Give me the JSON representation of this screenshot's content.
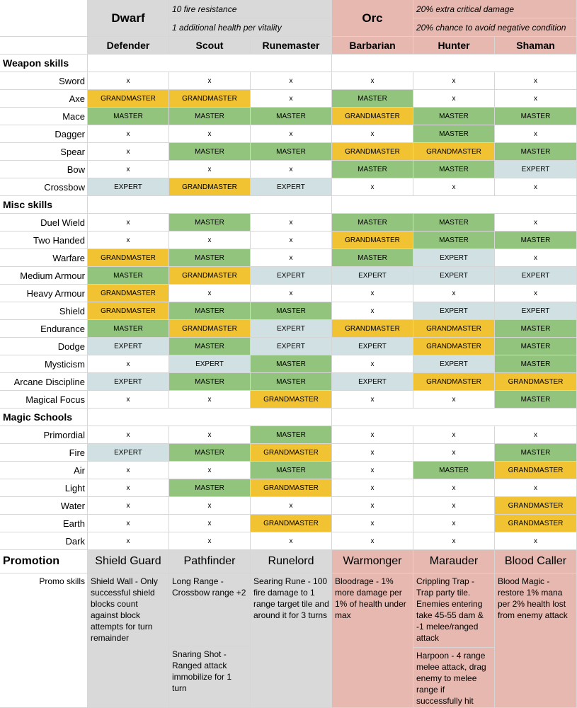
{
  "header": {
    "races": [
      {
        "name": "Dwarf",
        "traits": [
          "10 fire resistance",
          "1 additional health per vitality"
        ]
      },
      {
        "name": "Orc",
        "traits": [
          "20% extra critical damage",
          "20% chance to avoid negative condition"
        ]
      }
    ]
  },
  "classes": [
    "Defender",
    "Scout",
    "Runemaster",
    "Barbarian",
    "Hunter",
    "Shaman"
  ],
  "colors": {
    "GRANDMASTER": "#f1c232",
    "MASTER": "#93c47d",
    "EXPERT": "#d0e0e3",
    "x": "#ffffff",
    "dwarf": "#d9d9d9",
    "orc": "#e6b8af"
  },
  "sections": [
    {
      "title": "Weapon skills",
      "rows": [
        {
          "skill": "Sword",
          "values": [
            "x",
            "x",
            "x",
            "x",
            "x",
            "x"
          ]
        },
        {
          "skill": "Axe",
          "values": [
            "GRANDMASTER",
            "GRANDMASTER",
            "x",
            "MASTER",
            "x",
            "x"
          ]
        },
        {
          "skill": "Mace",
          "values": [
            "MASTER",
            "MASTER",
            "MASTER",
            "GRANDMASTER",
            "MASTER",
            "MASTER"
          ]
        },
        {
          "skill": "Dagger",
          "values": [
            "x",
            "x",
            "x",
            "x",
            "MASTER",
            "x"
          ]
        },
        {
          "skill": "Spear",
          "values": [
            "x",
            "MASTER",
            "MASTER",
            "GRANDMASTER",
            "GRANDMASTER",
            "MASTER"
          ]
        },
        {
          "skill": "Bow",
          "values": [
            "x",
            "x",
            "x",
            "MASTER",
            "MASTER",
            "EXPERT"
          ]
        },
        {
          "skill": "Crossbow",
          "values": [
            "EXPERT",
            "GRANDMASTER",
            "EXPERT",
            "x",
            "x",
            "x"
          ]
        }
      ]
    },
    {
      "title": "Misc skills",
      "rows": [
        {
          "skill": "Duel Wield",
          "values": [
            "x",
            "MASTER",
            "x",
            "MASTER",
            "MASTER",
            "x"
          ]
        },
        {
          "skill": "Two Handed",
          "values": [
            "x",
            "x",
            "x",
            "GRANDMASTER",
            "MASTER",
            "MASTER"
          ]
        },
        {
          "skill": "Warfare",
          "values": [
            "GRANDMASTER",
            "MASTER",
            "x",
            "MASTER",
            "EXPERT",
            "x"
          ]
        },
        {
          "skill": "Medium Armour",
          "values": [
            "MASTER",
            "GRANDMASTER",
            "EXPERT",
            "EXPERT",
            "EXPERT",
            "EXPERT"
          ]
        },
        {
          "skill": "Heavy Armour",
          "values": [
            "GRANDMASTER",
            "x",
            "x",
            "x",
            "x",
            "x"
          ]
        },
        {
          "skill": "Shield",
          "values": [
            "GRANDMASTER",
            "MASTER",
            "MASTER",
            "x",
            "EXPERT",
            "EXPERT"
          ]
        },
        {
          "skill": "Endurance",
          "values": [
            "MASTER",
            "GRANDMASTER",
            "EXPERT",
            "GRANDMASTER",
            "GRANDMASTER",
            "MASTER"
          ]
        },
        {
          "skill": "Dodge",
          "values": [
            "EXPERT",
            "MASTER",
            "EXPERT",
            "EXPERT",
            "GRANDMASTER",
            "MASTER"
          ]
        },
        {
          "skill": "Mysticism",
          "values": [
            "x",
            "EXPERT",
            "MASTER",
            "x",
            "EXPERT",
            "MASTER"
          ]
        },
        {
          "skill": "Arcane Discipline",
          "values": [
            "EXPERT",
            "MASTER",
            "MASTER",
            "EXPERT",
            "GRANDMASTER",
            "GRANDMASTER"
          ]
        },
        {
          "skill": "Magical Focus",
          "values": [
            "x",
            "x",
            "GRANDMASTER",
            "x",
            "x",
            "MASTER"
          ]
        }
      ]
    },
    {
      "title": "Magic Schools",
      "rows": [
        {
          "skill": "Primordial",
          "values": [
            "x",
            "x",
            "MASTER",
            "x",
            "x",
            "x"
          ]
        },
        {
          "skill": "Fire",
          "values": [
            "EXPERT",
            "MASTER",
            "GRANDMASTER",
            "x",
            "x",
            "MASTER"
          ]
        },
        {
          "skill": "Air",
          "values": [
            "x",
            "x",
            "MASTER",
            "x",
            "MASTER",
            "GRANDMASTER"
          ]
        },
        {
          "skill": "Light",
          "values": [
            "x",
            "MASTER",
            "GRANDMASTER",
            "x",
            "x",
            "x"
          ]
        },
        {
          "skill": "Water",
          "values": [
            "x",
            "x",
            "x",
            "x",
            "x",
            "GRANDMASTER"
          ]
        },
        {
          "skill": "Earth",
          "values": [
            "x",
            "x",
            "GRANDMASTER",
            "x",
            "x",
            "GRANDMASTER"
          ]
        },
        {
          "skill": "Dark",
          "values": [
            "x",
            "x",
            "x",
            "x",
            "x",
            "x"
          ]
        }
      ]
    }
  ],
  "promotion": {
    "label": "Promotion",
    "names": [
      "Shield Guard",
      "Pathfinder",
      "Runelord",
      "Warmonger",
      "Marauder",
      "Blood Caller"
    ]
  },
  "promo_skills": {
    "label": "Promo skills",
    "columns": [
      [
        "Shield Wall - Only successful shield blocks count against block attempts for turn remainder"
      ],
      [
        "Long Range - Crossbow range +2",
        "Snaring Shot - Ranged attack immobilize for 1 turn"
      ],
      [
        "Searing Rune - 100 fire damage to 1 range target tile and around it for 3 turns"
      ],
      [
        "Bloodrage - 1% more damage per 1% of health under max"
      ],
      [
        "Crippling Trap - Trap party tile. Enemies entering take 45-55 dam & -1 melee/ranged attack",
        "Harpoon - 4 range melee attack, drag enemy to melee range if successfully hit"
      ],
      [
        "Blood Magic - restore 1% mana per 2% health lost from enemy attack"
      ]
    ]
  }
}
